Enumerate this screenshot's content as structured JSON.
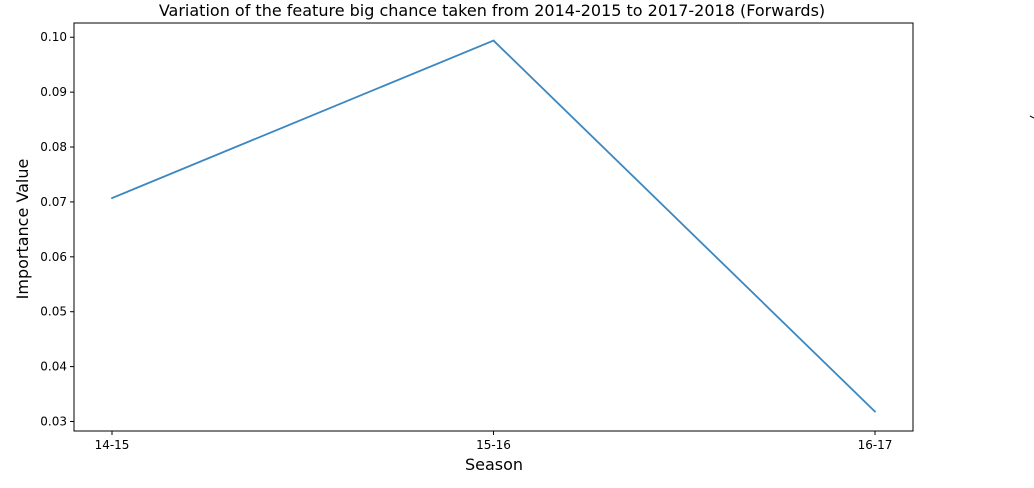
{
  "chart_data": {
    "type": "line",
    "title": "Variation of the feature big chance taken from 2014-2015 to 2017-2018 (Forwards)",
    "xlabel": "Season",
    "ylabel": "Importance Value",
    "categories": [
      "14-15",
      "15-16",
      "16-17"
    ],
    "series": [
      {
        "name": "big chance taken",
        "values": [
          0.0707,
          0.0994,
          0.0318
        ]
      }
    ],
    "ylim": [
      0.03,
      0.1
    ],
    "yticks": [
      0.03,
      0.04,
      0.05,
      0.06,
      0.07,
      0.08,
      0.09,
      0.1
    ],
    "ytick_labels": [
      "0.03",
      "0.04",
      "0.05",
      "0.06",
      "0.07",
      "0.08",
      "0.09",
      "0.10"
    ],
    "grid": false,
    "line_color": "#3c87c0"
  }
}
